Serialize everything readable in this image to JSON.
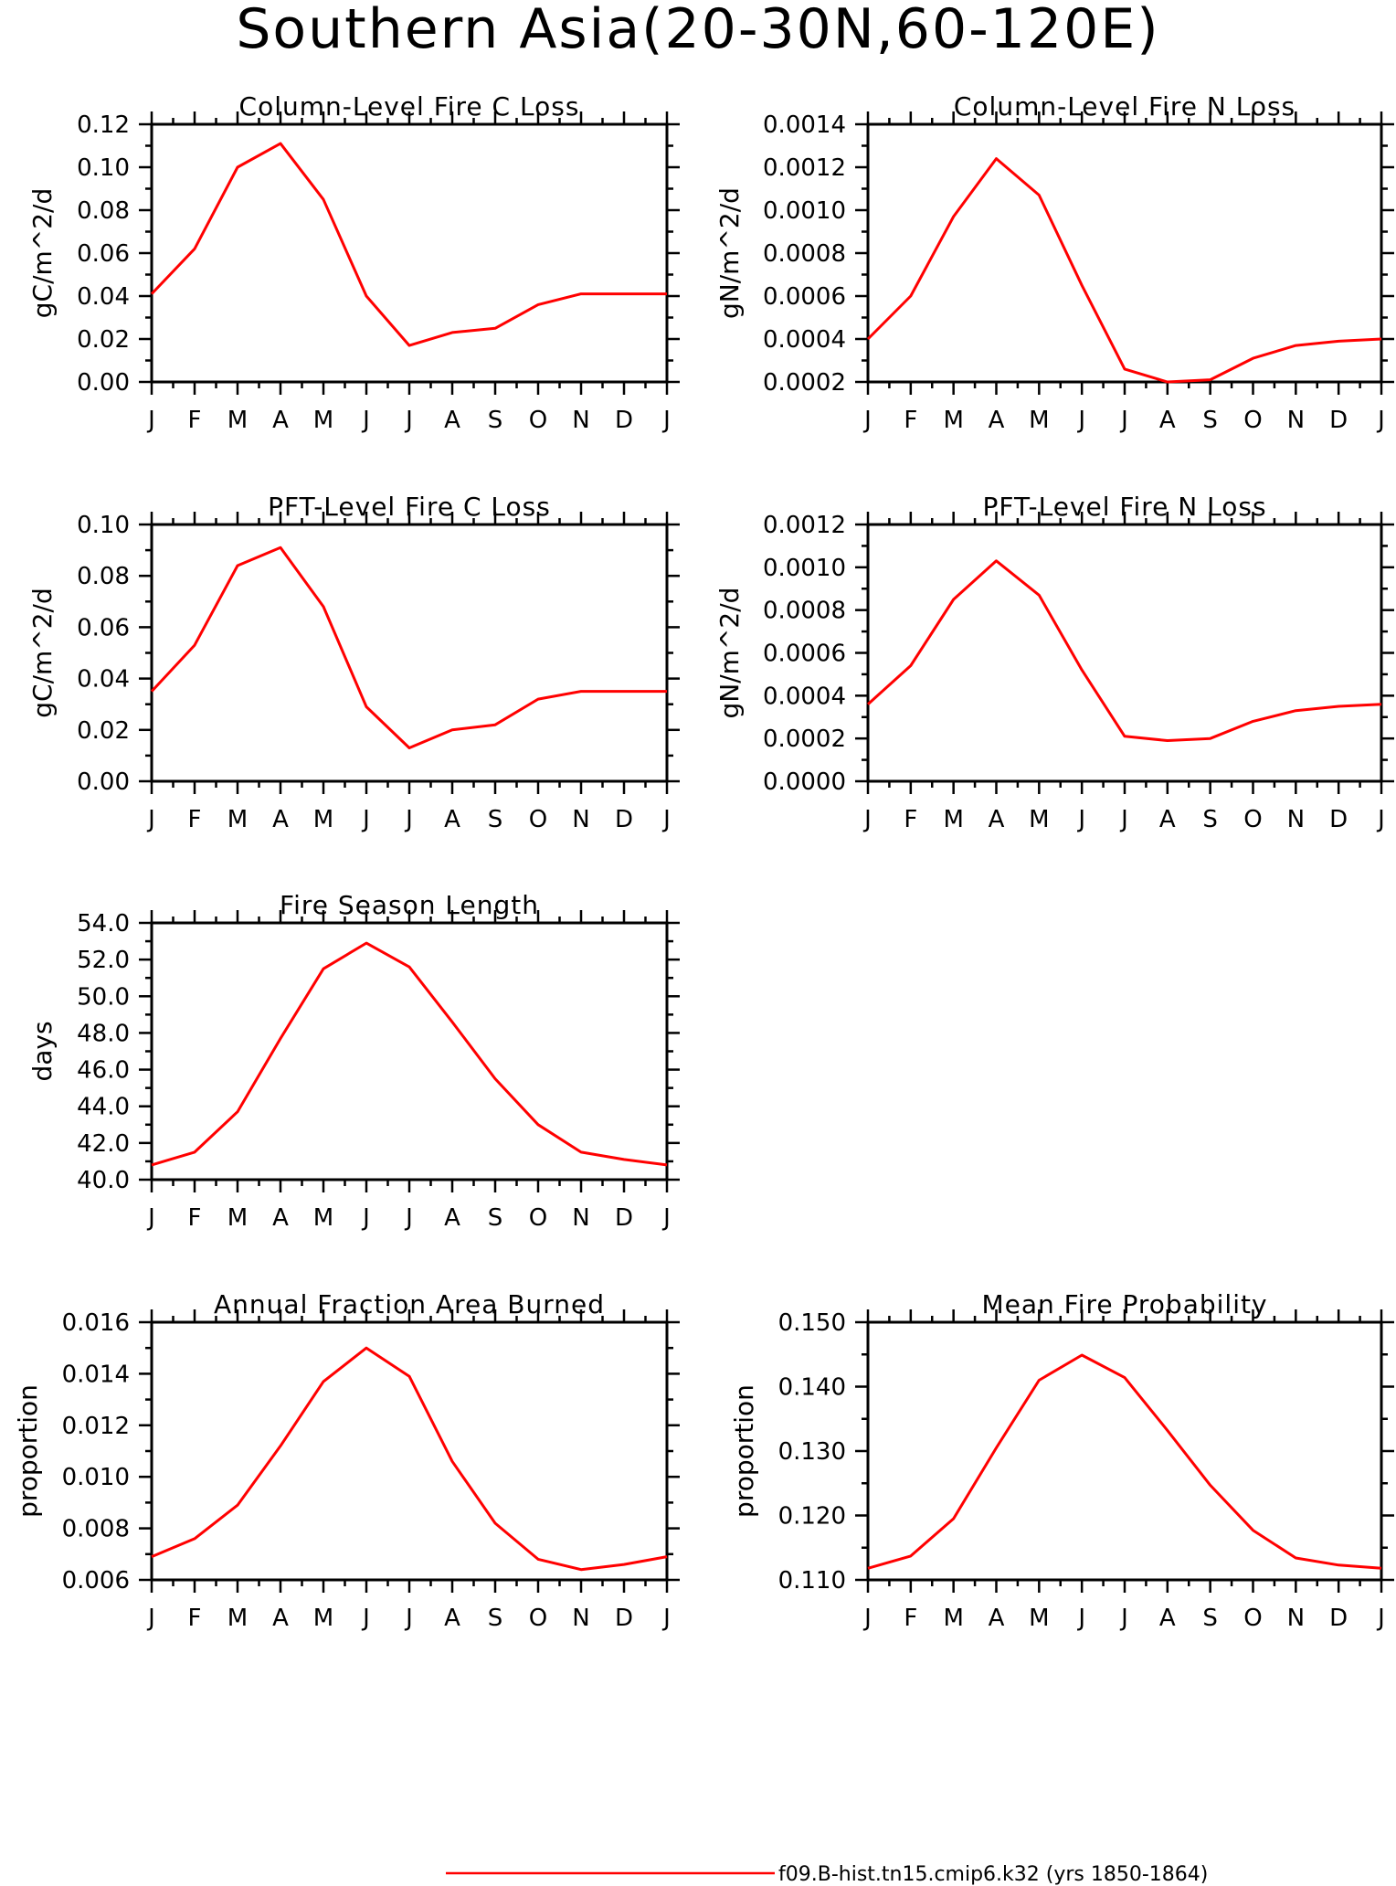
{
  "title": "Southern Asia(20-30N,60-120E)",
  "legend": {
    "label": "f09.B-hist.tn15.cmip6.k32 (yrs 1850-1864)",
    "color": "#ff0000"
  },
  "chart_data": [
    {
      "type": "line",
      "title": "Column-Level Fire C Loss",
      "ylabel": "gC/m^2/d",
      "categories": [
        "J",
        "F",
        "M",
        "A",
        "M",
        "J",
        "J",
        "A",
        "S",
        "O",
        "N",
        "D",
        "J"
      ],
      "ylim": [
        0.0,
        0.12
      ],
      "yticks": [
        "0.00",
        "0.02",
        "0.04",
        "0.06",
        "0.08",
        "0.10",
        "0.12"
      ],
      "series": [
        {
          "values": [
            0.041,
            0.062,
            0.1,
            0.111,
            0.085,
            0.04,
            0.017,
            0.023,
            0.025,
            0.036,
            0.041,
            0.041,
            0.041
          ]
        }
      ]
    },
    {
      "type": "line",
      "title": "Column-Level Fire N Loss",
      "ylabel": "gN/m^2/d",
      "categories": [
        "J",
        "F",
        "M",
        "A",
        "M",
        "J",
        "J",
        "A",
        "S",
        "O",
        "N",
        "D",
        "J"
      ],
      "ylim": [
        0.0002,
        0.0014
      ],
      "yticks": [
        "0.0002",
        "0.0004",
        "0.0006",
        "0.0008",
        "0.0010",
        "0.0012",
        "0.0014"
      ],
      "series": [
        {
          "values": [
            0.0004,
            0.0006,
            0.00097,
            0.00124,
            0.00107,
            0.00065,
            0.00026,
            0.0002,
            0.00021,
            0.00031,
            0.00037,
            0.00039,
            0.0004
          ]
        }
      ]
    },
    {
      "type": "line",
      "title": "PFT-Level Fire C Loss",
      "ylabel": "gC/m^2/d",
      "categories": [
        "J",
        "F",
        "M",
        "A",
        "M",
        "J",
        "J",
        "A",
        "S",
        "O",
        "N",
        "D",
        "J"
      ],
      "ylim": [
        0.0,
        0.1
      ],
      "yticks": [
        "0.00",
        "0.02",
        "0.04",
        "0.06",
        "0.08",
        "0.10"
      ],
      "series": [
        {
          "values": [
            0.035,
            0.053,
            0.084,
            0.091,
            0.068,
            0.029,
            0.013,
            0.02,
            0.022,
            0.032,
            0.035,
            0.035,
            0.035
          ]
        }
      ]
    },
    {
      "type": "line",
      "title": "PFT-Level Fire N Loss",
      "ylabel": "gN/m^2/d",
      "categories": [
        "J",
        "F",
        "M",
        "A",
        "M",
        "J",
        "J",
        "A",
        "S",
        "O",
        "N",
        "D",
        "J"
      ],
      "ylim": [
        0.0,
        0.0012
      ],
      "yticks": [
        "0.0000",
        "0.0002",
        "0.0004",
        "0.0006",
        "0.0008",
        "0.0010",
        "0.0012"
      ],
      "series": [
        {
          "values": [
            0.00036,
            0.00054,
            0.00085,
            0.00103,
            0.00087,
            0.00052,
            0.00021,
            0.00019,
            0.0002,
            0.00028,
            0.00033,
            0.00035,
            0.00036
          ]
        }
      ]
    },
    {
      "type": "line",
      "title": "Fire Season Length",
      "ylabel": "days",
      "categories": [
        "J",
        "F",
        "M",
        "A",
        "M",
        "J",
        "J",
        "A",
        "S",
        "O",
        "N",
        "D",
        "J"
      ],
      "ylim": [
        40.0,
        54.0
      ],
      "yticks": [
        "40.0",
        "42.0",
        "44.0",
        "46.0",
        "48.0",
        "50.0",
        "52.0",
        "54.0"
      ],
      "series": [
        {
          "values": [
            40.8,
            41.5,
            43.7,
            47.7,
            51.5,
            52.9,
            51.6,
            48.6,
            45.5,
            43.0,
            41.5,
            41.1,
            40.8
          ]
        }
      ]
    },
    {
      "type": "line",
      "title": "Annual Fraction Area Burned",
      "ylabel": "proportion",
      "categories": [
        "J",
        "F",
        "M",
        "A",
        "M",
        "J",
        "J",
        "A",
        "S",
        "O",
        "N",
        "D",
        "J"
      ],
      "ylim": [
        0.006,
        0.016
      ],
      "yticks": [
        "0.006",
        "0.008",
        "0.010",
        "0.012",
        "0.014",
        "0.016"
      ],
      "series": [
        {
          "values": [
            0.0069,
            0.0076,
            0.0089,
            0.0112,
            0.0137,
            0.015,
            0.0139,
            0.0106,
            0.0082,
            0.0068,
            0.0064,
            0.0066,
            0.0069
          ]
        }
      ]
    },
    {
      "type": "line",
      "title": "Mean Fire Probability",
      "ylabel": "proportion",
      "categories": [
        "J",
        "F",
        "M",
        "A",
        "M",
        "J",
        "J",
        "A",
        "S",
        "O",
        "N",
        "D",
        "J"
      ],
      "ylim": [
        0.11,
        0.15
      ],
      "yticks": [
        "0.110",
        "0.120",
        "0.130",
        "0.140",
        "0.150"
      ],
      "series": [
        {
          "values": [
            0.1118,
            0.1137,
            0.1195,
            0.1305,
            0.141,
            0.1449,
            0.1414,
            0.1332,
            0.1247,
            0.1177,
            0.1134,
            0.1123,
            0.1118
          ]
        }
      ]
    }
  ]
}
